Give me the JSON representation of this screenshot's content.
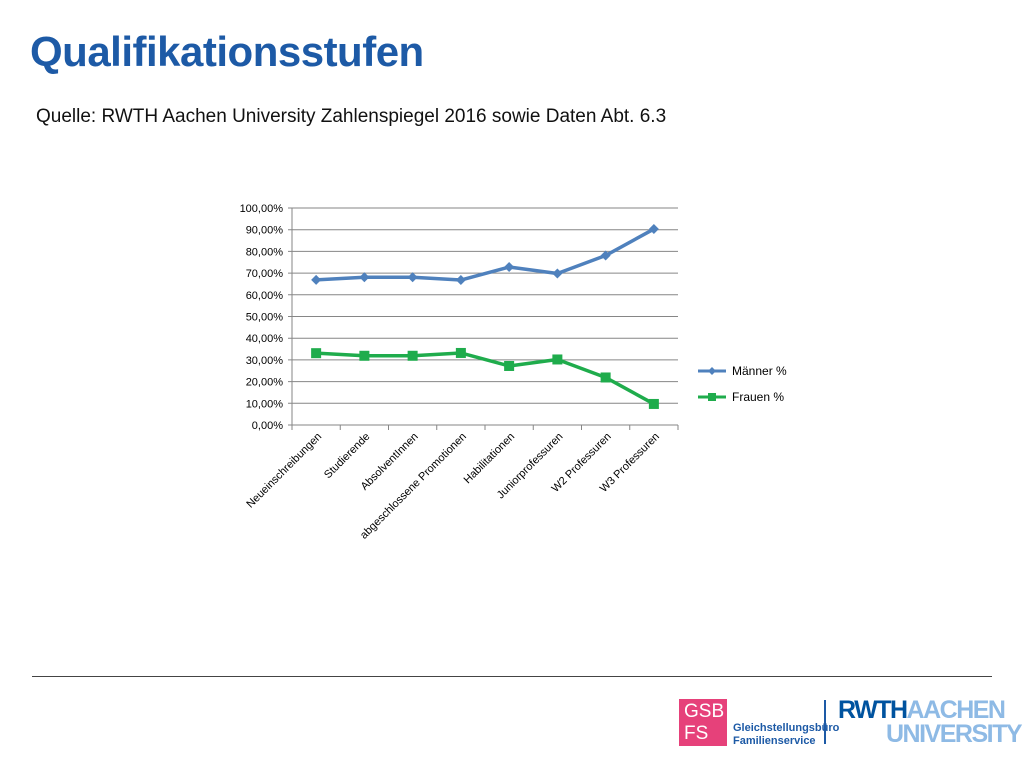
{
  "slide": {
    "title": "Qualifikationsstufen",
    "source": "Quelle: RWTH Aachen University Zahlenspiegel 2016 sowie Daten Abt. 6.3"
  },
  "chart_data": {
    "type": "line",
    "categories": [
      "Neueinschreibungen",
      "Studierende",
      "AbsolventInnen",
      "abgeschlossene Promotionen",
      "Habilitationen",
      "Juniorprofessuren",
      "W2 Professuren",
      "W3 Professuren"
    ],
    "series": [
      {
        "name": "Männer %",
        "color": "#4f81bd",
        "marker": "diamond",
        "values": [
          66.9,
          68.1,
          68.1,
          66.8,
          72.8,
          69.8,
          78.1,
          90.3
        ]
      },
      {
        "name": "Frauen %",
        "color": "#1fac4c",
        "marker": "square",
        "values": [
          33.1,
          31.9,
          31.9,
          33.2,
          27.2,
          30.2,
          21.9,
          9.7
        ]
      }
    ],
    "ylim": [
      0,
      100
    ],
    "yticks": [
      "0,00%",
      "10,00%",
      "20,00%",
      "30,00%",
      "40,00%",
      "50,00%",
      "60,00%",
      "70,00%",
      "80,00%",
      "90,00%",
      "100,00%"
    ],
    "grid": true,
    "legend": "right"
  },
  "footer": {
    "gsb_letters": [
      "GSB",
      "FS"
    ],
    "gsb_name": [
      "Gleichstellungsbüro",
      "Familienservice"
    ],
    "university_logo": {
      "rwth": "RWTH",
      "aachen": "AACHEN",
      "university": "UNIVERSITY"
    }
  }
}
